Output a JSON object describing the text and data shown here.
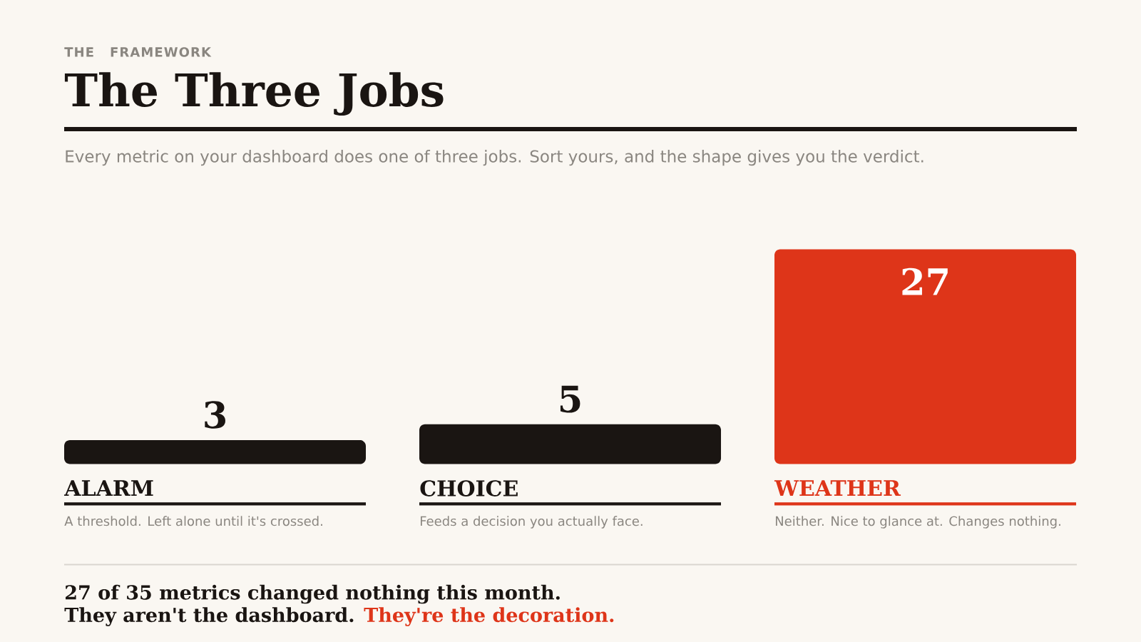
{
  "chart_data": {
    "type": "bar",
    "title": "The Three Jobs",
    "subtitle": "Every metric on your dashboard does one of three jobs. Sort yours, and the shape gives you the verdict.",
    "categories": [
      "ALARM",
      "CHOICE",
      "WEATHER"
    ],
    "values": [
      3,
      5,
      27
    ],
    "colors": [
      "#1a1512",
      "#1a1512",
      "#de3519"
    ],
    "data_labels": true,
    "annotations": [
      "THE FRAMEWORK",
      "A threshold. Left alone until it's crossed.",
      "Feeds a decision you actually face.",
      "Neither. Nice to glance at. Changes nothing.",
      "27 of 35 metrics changed nothing this month.",
      "They aren't the dashboard.",
      "They're the decoration."
    ]
  }
}
